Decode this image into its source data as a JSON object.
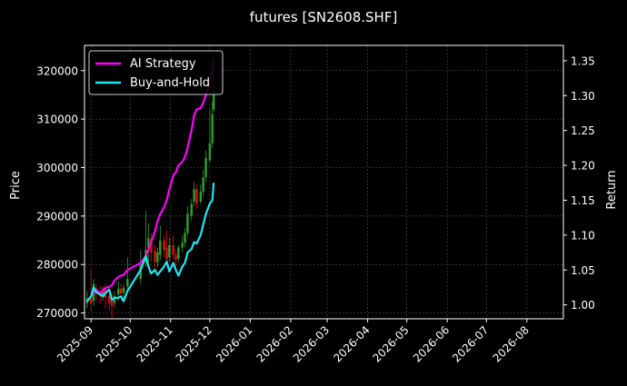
{
  "chart_data": {
    "type": "line",
    "title": "futures [SN2608.SHF]",
    "ylabel_left": "Price",
    "ylabel_right": "Return",
    "xlabel": "",
    "x_ticks": [
      "2025-09",
      "2025-10",
      "2025-11",
      "2025-12",
      "2026-01",
      "2026-02",
      "2026-03",
      "2026-04",
      "2026-05",
      "2026-06",
      "2026-07",
      "2026-08"
    ],
    "x_range": [
      "2025-08-27",
      "2026-08-29"
    ],
    "y_left_ticks": [
      270000,
      280000,
      290000,
      300000,
      310000,
      320000
    ],
    "y_left_range": [
      268800,
      325200
    ],
    "y_right_ticks": [
      1.0,
      1.05,
      1.1,
      1.15,
      1.2,
      1.25,
      1.3,
      1.35
    ],
    "y_right_range": [
      0.98,
      1.372
    ],
    "grid": true,
    "legend_position": "upper-left",
    "colors": {
      "background": "#000000",
      "strategy": "#ff00ff",
      "buyhold": "#22e5f0",
      "candle_up": "#2ea02e",
      "candle_down": "#e01010",
      "grid": "#555555",
      "axis": "#ffffff"
    },
    "series": [
      {
        "name": "AI Strategy",
        "axis": "right",
        "color": "#ff00ff",
        "x": [
          "2025-08-29",
          "2025-09-01",
          "2025-09-03",
          "2025-09-05",
          "2025-09-08",
          "2025-09-10",
          "2025-09-12",
          "2025-09-15",
          "2025-09-17",
          "2025-09-19",
          "2025-09-22",
          "2025-09-24",
          "2025-09-26",
          "2025-09-29",
          "2025-10-09",
          "2025-10-13",
          "2025-10-15",
          "2025-10-17",
          "2025-10-20",
          "2025-10-22",
          "2025-10-24",
          "2025-10-27",
          "2025-10-29",
          "2025-10-31",
          "2025-11-03",
          "2025-11-05",
          "2025-11-07",
          "2025-11-10",
          "2025-11-12",
          "2025-11-14",
          "2025-11-17",
          "2025-11-19",
          "2025-11-21",
          "2025-11-24",
          "2025-11-26",
          "2025-11-28",
          "2025-12-01",
          "2025-12-03",
          "2025-12-04"
        ],
        "values": [
          1.005,
          1.012,
          1.018,
          1.022,
          1.015,
          1.02,
          1.024,
          1.026,
          1.028,
          1.035,
          1.04,
          1.042,
          1.043,
          1.05,
          1.06,
          1.07,
          1.08,
          1.09,
          1.105,
          1.12,
          1.13,
          1.14,
          1.15,
          1.165,
          1.185,
          1.19,
          1.2,
          1.205,
          1.212,
          1.225,
          1.25,
          1.272,
          1.28,
          1.282,
          1.29,
          1.3,
          1.32,
          1.335,
          1.35
        ]
      },
      {
        "name": "Buy-and-Hold",
        "axis": "right",
        "color": "#22e5f0",
        "x": [
          "2025-08-29",
          "2025-09-01",
          "2025-09-03",
          "2025-09-05",
          "2025-09-08",
          "2025-09-10",
          "2025-09-12",
          "2025-09-15",
          "2025-09-17",
          "2025-09-19",
          "2025-09-22",
          "2025-09-24",
          "2025-09-26",
          "2025-09-29",
          "2025-10-09",
          "2025-10-13",
          "2025-10-15",
          "2025-10-17",
          "2025-10-20",
          "2025-10-22",
          "2025-10-24",
          "2025-10-27",
          "2025-10-29",
          "2025-10-31",
          "2025-11-03",
          "2025-11-05",
          "2025-11-07",
          "2025-11-10",
          "2025-11-12",
          "2025-11-14",
          "2025-11-17",
          "2025-11-19",
          "2025-11-21",
          "2025-11-24",
          "2025-11-26",
          "2025-11-28",
          "2025-12-01",
          "2025-12-03",
          "2025-12-04"
        ],
        "values": [
          1.005,
          1.012,
          1.025,
          1.018,
          1.015,
          1.012,
          1.017,
          1.022,
          1.007,
          1.01,
          1.01,
          1.012,
          1.005,
          1.02,
          1.05,
          1.07,
          1.055,
          1.045,
          1.05,
          1.043,
          1.048,
          1.055,
          1.062,
          1.048,
          1.06,
          1.05,
          1.042,
          1.055,
          1.06,
          1.075,
          1.08,
          1.09,
          1.088,
          1.1,
          1.115,
          1.13,
          1.145,
          1.15,
          1.175
        ]
      }
    ],
    "candles": [
      {
        "x": "2025-08-29",
        "open": 272000,
        "close": 273000,
        "high": 274500,
        "low": 271000
      },
      {
        "x": "2025-09-01",
        "open": 273200,
        "close": 272000,
        "high": 279000,
        "low": 270500
      },
      {
        "x": "2025-09-03",
        "open": 272500,
        "close": 276000,
        "high": 277000,
        "low": 271500
      },
      {
        "x": "2025-09-05",
        "open": 275000,
        "close": 274000,
        "high": 276000,
        "low": 272500
      },
      {
        "x": "2025-09-08",
        "open": 274500,
        "close": 273500,
        "high": 275500,
        "low": 272000
      },
      {
        "x": "2025-09-10",
        "open": 273800,
        "close": 274500,
        "high": 275500,
        "low": 272500
      },
      {
        "x": "2025-09-12",
        "open": 274800,
        "close": 273200,
        "high": 276000,
        "low": 271000
      },
      {
        "x": "2025-09-15",
        "open": 273500,
        "close": 272000,
        "high": 275000,
        "low": 270500
      },
      {
        "x": "2025-09-17",
        "open": 272500,
        "close": 271500,
        "high": 274000,
        "low": 269000
      },
      {
        "x": "2025-09-19",
        "open": 272000,
        "close": 273500,
        "high": 274500,
        "low": 271000
      },
      {
        "x": "2025-09-22",
        "open": 273800,
        "close": 275000,
        "high": 276500,
        "low": 272500
      },
      {
        "x": "2025-09-24",
        "open": 275000,
        "close": 274000,
        "high": 276000,
        "low": 272500
      },
      {
        "x": "2025-09-26",
        "open": 274200,
        "close": 275200,
        "high": 276000,
        "low": 273000
      },
      {
        "x": "2025-09-29",
        "open": 275500,
        "close": 277000,
        "high": 281500,
        "low": 274500
      },
      {
        "x": "2025-10-09",
        "open": 277000,
        "close": 280000,
        "high": 283000,
        "low": 276000
      },
      {
        "x": "2025-10-13",
        "open": 280500,
        "close": 283000,
        "high": 291000,
        "low": 279500
      },
      {
        "x": "2025-10-15",
        "open": 283500,
        "close": 285500,
        "high": 288500,
        "low": 280000
      },
      {
        "x": "2025-10-17",
        "open": 285000,
        "close": 282500,
        "high": 286500,
        "low": 280500
      },
      {
        "x": "2025-10-20",
        "open": 282800,
        "close": 280500,
        "high": 284000,
        "low": 279000
      },
      {
        "x": "2025-10-22",
        "open": 280500,
        "close": 282500,
        "high": 283500,
        "low": 279500
      },
      {
        "x": "2025-10-24",
        "open": 282000,
        "close": 285000,
        "high": 288000,
        "low": 281000
      },
      {
        "x": "2025-10-27",
        "open": 285000,
        "close": 283000,
        "high": 286000,
        "low": 281500
      },
      {
        "x": "2025-10-29",
        "open": 283500,
        "close": 281000,
        "high": 287000,
        "low": 280000
      },
      {
        "x": "2025-10-31",
        "open": 281500,
        "close": 284000,
        "high": 285500,
        "low": 280500
      },
      {
        "x": "2025-11-03",
        "open": 284000,
        "close": 282000,
        "high": 286000,
        "low": 281000
      },
      {
        "x": "2025-11-05",
        "open": 282000,
        "close": 281000,
        "high": 283000,
        "low": 279500
      },
      {
        "x": "2025-11-07",
        "open": 281200,
        "close": 283500,
        "high": 284000,
        "low": 280500
      },
      {
        "x": "2025-11-10",
        "open": 283500,
        "close": 284500,
        "high": 286000,
        "low": 282500
      },
      {
        "x": "2025-11-12",
        "open": 284500,
        "close": 286500,
        "high": 287500,
        "low": 283500
      },
      {
        "x": "2025-11-14",
        "open": 286500,
        "close": 290500,
        "high": 292000,
        "low": 286000
      },
      {
        "x": "2025-11-17",
        "open": 290000,
        "close": 292500,
        "high": 293500,
        "low": 289000
      },
      {
        "x": "2025-11-19",
        "open": 293000,
        "close": 295500,
        "high": 297000,
        "low": 292000
      },
      {
        "x": "2025-11-21",
        "open": 295500,
        "close": 292500,
        "high": 296500,
        "low": 291500
      },
      {
        "x": "2025-11-24",
        "open": 293000,
        "close": 295000,
        "high": 296500,
        "low": 292500
      },
      {
        "x": "2025-11-26",
        "open": 295000,
        "close": 298000,
        "high": 299500,
        "low": 294000
      },
      {
        "x": "2025-11-28",
        "open": 298000,
        "close": 302000,
        "high": 303500,
        "low": 297000
      },
      {
        "x": "2025-12-01",
        "open": 301500,
        "close": 305000,
        "high": 312000,
        "low": 301000
      },
      {
        "x": "2025-12-03",
        "open": 305000,
        "close": 311000,
        "high": 313500,
        "low": 304000
      },
      {
        "x": "2025-12-04",
        "open": 312000,
        "close": 316000,
        "high": 323000,
        "low": 311500
      }
    ]
  }
}
